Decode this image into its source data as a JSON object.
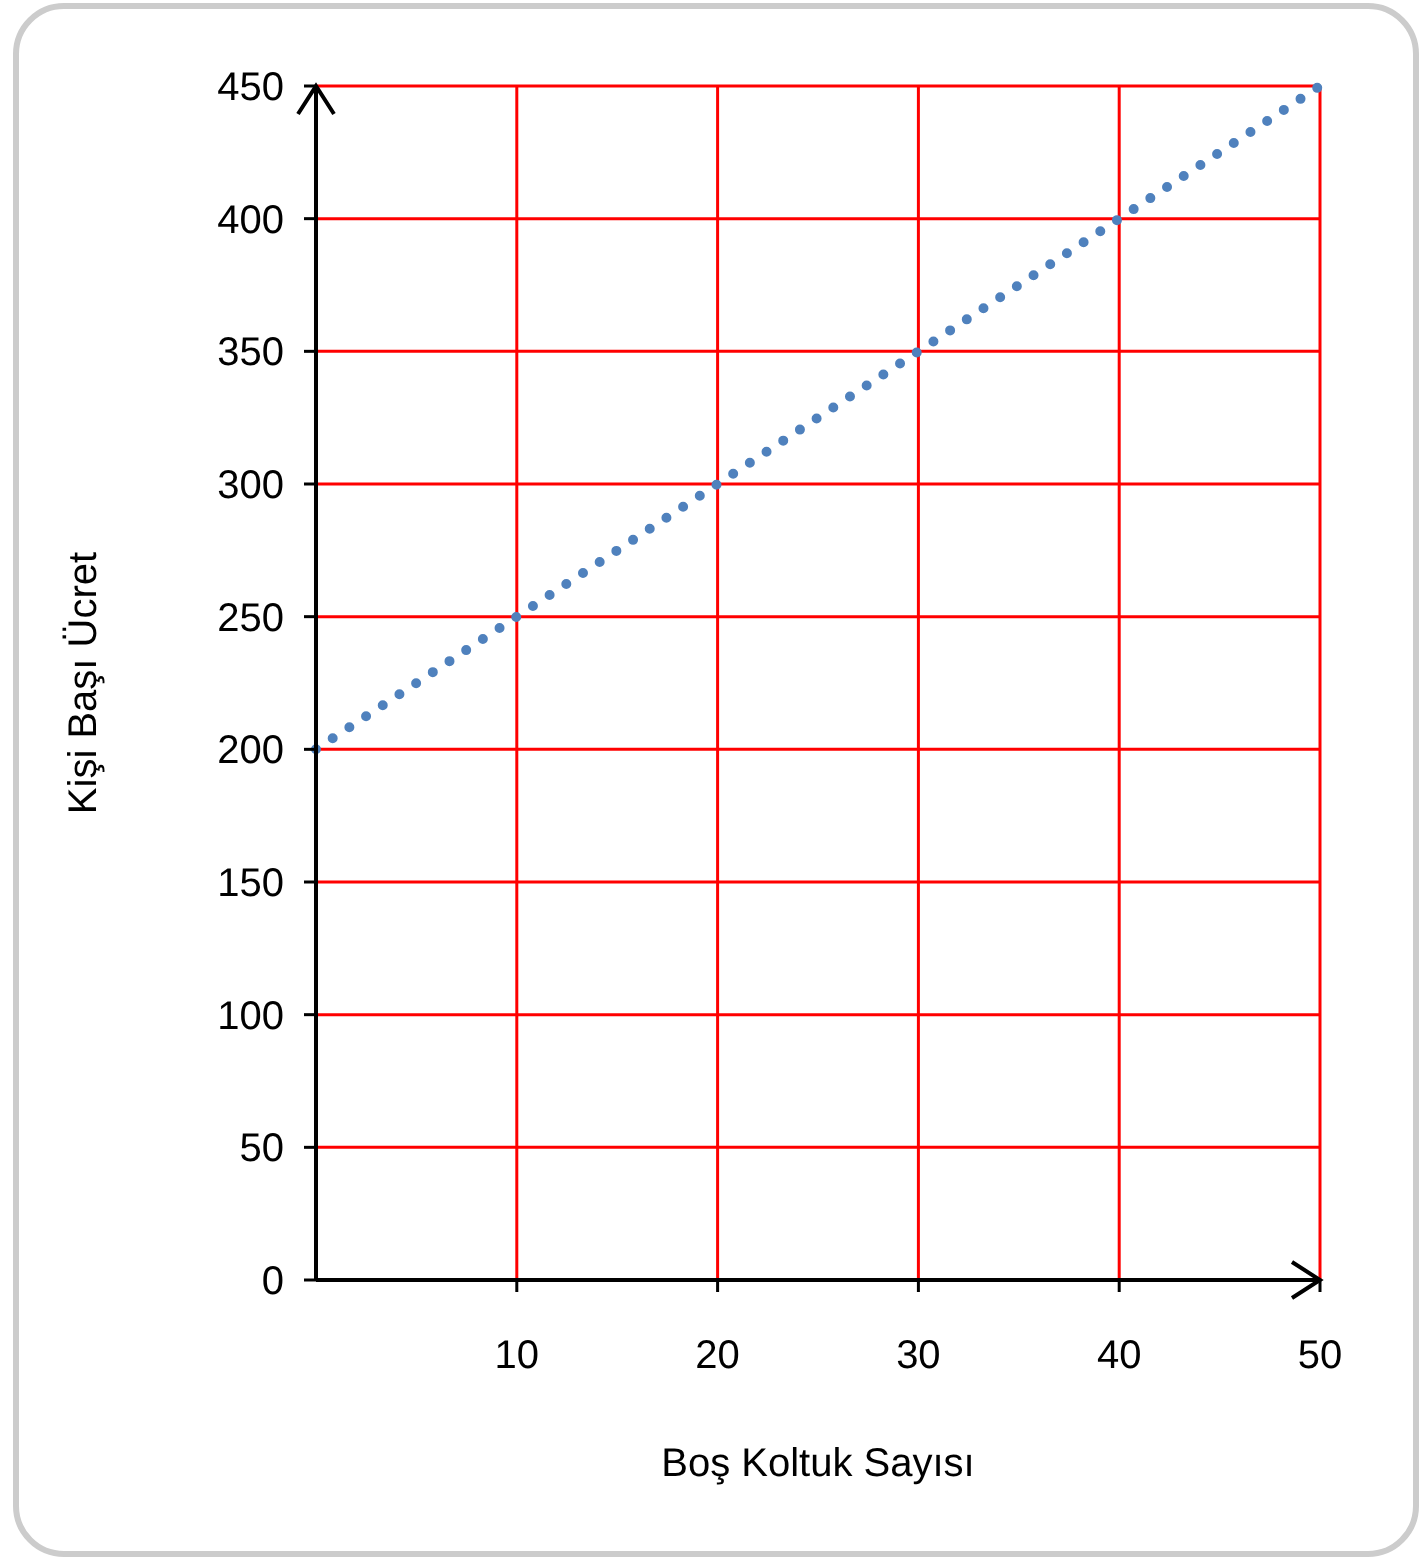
{
  "chart_data": {
    "type": "line",
    "xlabel": "Boş Koltuk Sayısı",
    "ylabel": "Kişi Başı Ücret",
    "x": [
      0,
      50
    ],
    "series": [
      {
        "color": "#4f81bd",
        "values": [
          200,
          450
        ]
      }
    ],
    "xlim": [
      0,
      50
    ],
    "xticks": [
      10,
      20,
      30,
      40,
      50
    ],
    "ylim": [
      0,
      450
    ],
    "yticks": [
      0,
      50,
      100,
      150,
      200,
      250,
      300,
      350,
      400,
      450
    ],
    "grid": true,
    "marker": "none",
    "line_style": "dotted"
  }
}
